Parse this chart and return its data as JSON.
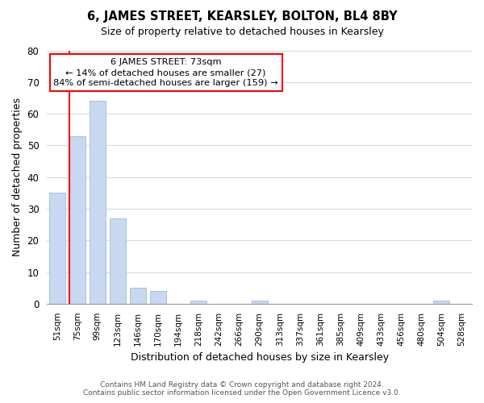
{
  "title": "6, JAMES STREET, KEARSLEY, BOLTON, BL4 8BY",
  "subtitle": "Size of property relative to detached houses in Kearsley",
  "xlabel": "Distribution of detached houses by size in Kearsley",
  "ylabel": "Number of detached properties",
  "bar_labels": [
    "51sqm",
    "75sqm",
    "99sqm",
    "123sqm",
    "146sqm",
    "170sqm",
    "194sqm",
    "218sqm",
    "242sqm",
    "266sqm",
    "290sqm",
    "313sqm",
    "337sqm",
    "361sqm",
    "385sqm",
    "409sqm",
    "433sqm",
    "456sqm",
    "480sqm",
    "504sqm",
    "528sqm"
  ],
  "bar_values": [
    35,
    53,
    64,
    27,
    5,
    4,
    0,
    1,
    0,
    0,
    1,
    0,
    0,
    0,
    0,
    0,
    0,
    0,
    0,
    1,
    0
  ],
  "bar_color": "#c8d8f0",
  "bar_edge_color": "#a8c0e0",
  "vline_color": "red",
  "ylim": [
    0,
    80
  ],
  "yticks": [
    0,
    10,
    20,
    30,
    40,
    50,
    60,
    70,
    80
  ],
  "annotation_text": "6 JAMES STREET: 73sqm\n← 14% of detached houses are smaller (27)\n84% of semi-detached houses are larger (159) →",
  "annotation_box_color": "white",
  "annotation_box_edge": "red",
  "footer_line1": "Contains HM Land Registry data © Crown copyright and database right 2024.",
  "footer_line2": "Contains public sector information licensed under the Open Government Licence v3.0.",
  "bg_color": "white",
  "grid_color": "#d0dcea"
}
